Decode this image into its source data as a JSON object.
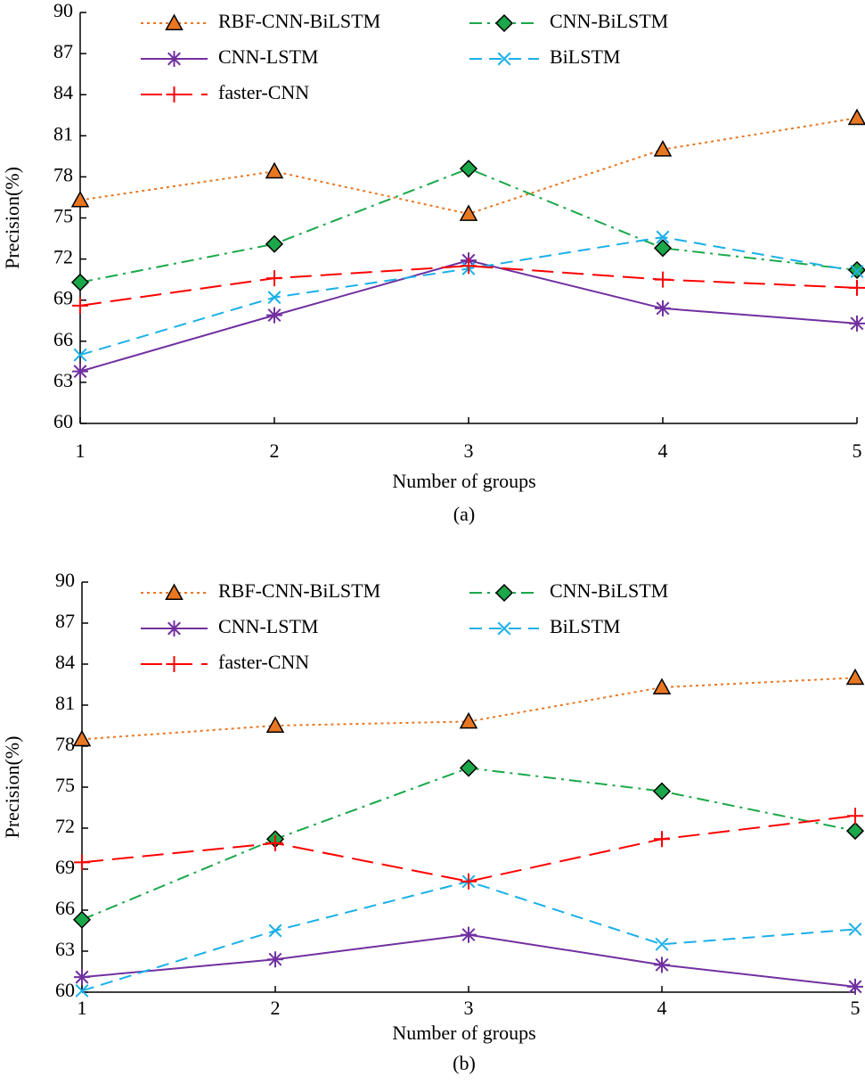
{
  "chart_data": [
    {
      "type": "line",
      "xlabel": "Number of groups",
      "ylabel": "Precision(%)",
      "caption": "(a)",
      "x": [
        1,
        2,
        3,
        4,
        5
      ],
      "xlim": [
        1,
        5
      ],
      "xticks": [
        1,
        2,
        3,
        4,
        5
      ],
      "ylim": [
        60,
        90
      ],
      "yticks": [
        60,
        63,
        66,
        69,
        72,
        75,
        78,
        81,
        84,
        87,
        90
      ],
      "series": [
        {
          "name": "RBF-CNN-BiLSTM",
          "color": "#e87722",
          "dash": "dotted",
          "marker": "triangle",
          "values": [
            76.3,
            78.4,
            75.3,
            80.0,
            82.3
          ]
        },
        {
          "name": "CNN-BiLSTM",
          "color": "#1aa84a",
          "dash": "dashdot",
          "marker": "diamond",
          "values": [
            70.3,
            73.1,
            78.6,
            72.8,
            71.2
          ]
        },
        {
          "name": "CNN-LSTM",
          "color": "#7030a0",
          "dash": "solid",
          "marker": "star",
          "values": [
            63.8,
            67.9,
            71.9,
            68.4,
            67.3
          ]
        },
        {
          "name": "BiLSTM",
          "color": "#1ab0e8",
          "dash": "dashed",
          "marker": "x",
          "values": [
            65.0,
            69.2,
            71.3,
            73.6,
            71.1
          ]
        },
        {
          "name": "faster-CNN",
          "color": "#ff0000",
          "dash": "longdash",
          "marker": "plus",
          "values": [
            68.6,
            70.6,
            71.5,
            70.5,
            69.9
          ]
        }
      ]
    },
    {
      "type": "line",
      "xlabel": "Number of groups",
      "ylabel": "Precision(%)",
      "caption": "(b)",
      "x": [
        1,
        2,
        3,
        4,
        5
      ],
      "xlim": [
        1,
        5
      ],
      "xticks": [
        1,
        2,
        3,
        4,
        5
      ],
      "ylim": [
        60,
        90
      ],
      "yticks": [
        60,
        63,
        66,
        69,
        72,
        75,
        78,
        81,
        84,
        87,
        90
      ],
      "series": [
        {
          "name": "RBF-CNN-BiLSTM",
          "color": "#e87722",
          "dash": "dotted",
          "marker": "triangle",
          "values": [
            78.5,
            79.5,
            79.8,
            82.3,
            83.0
          ]
        },
        {
          "name": "CNN-BiLSTM",
          "color": "#1aa84a",
          "dash": "dashdot",
          "marker": "diamond",
          "values": [
            65.3,
            71.2,
            76.4,
            74.7,
            71.8
          ]
        },
        {
          "name": "CNN-LSTM",
          "color": "#7030a0",
          "dash": "solid",
          "marker": "star",
          "values": [
            61.1,
            62.4,
            64.2,
            62.0,
            60.4
          ]
        },
        {
          "name": "BiLSTM",
          "color": "#1ab0e8",
          "dash": "dashed",
          "marker": "x",
          "values": [
            60.1,
            64.5,
            68.1,
            63.5,
            64.6
          ]
        },
        {
          "name": "faster-CNN",
          "color": "#ff0000",
          "dash": "longdash",
          "marker": "plus",
          "values": [
            69.5,
            70.9,
            68.1,
            71.2,
            72.9
          ]
        }
      ]
    }
  ]
}
